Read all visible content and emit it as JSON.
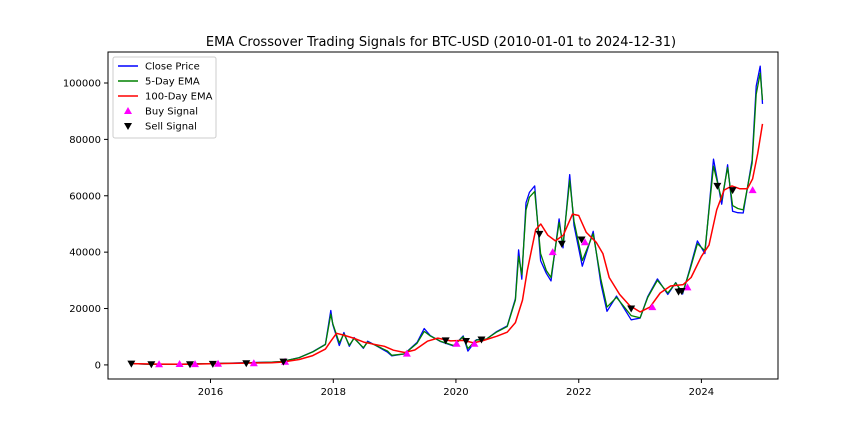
{
  "chart_data": {
    "type": "line",
    "title": "EMA Crossover Trading Signals for BTC-USD (2010-01-01 to 2024-12-31)",
    "xlabel": "",
    "ylabel": "",
    "x_range": [
      "2014-05-01",
      "2025-04-01"
    ],
    "ylim": [
      -5000,
      111000
    ],
    "x_ticks": [
      {
        "date": "2016-01-01",
        "label": "2016"
      },
      {
        "date": "2018-01-01",
        "label": "2018"
      },
      {
        "date": "2020-01-01",
        "label": "2020"
      },
      {
        "date": "2022-01-01",
        "label": "2022"
      },
      {
        "date": "2024-01-01",
        "label": "2024"
      }
    ],
    "y_ticks": [
      0,
      20000,
      40000,
      60000,
      80000,
      100000
    ],
    "grid": false,
    "legend_position": "top-left",
    "series": [
      {
        "name": "Close Price",
        "color": "#0000ff",
        "points": [
          [
            "2014-09-17",
            457
          ],
          [
            "2015-01-14",
            178
          ],
          [
            "2015-06-01",
            230
          ],
          [
            "2015-11-04",
            400
          ],
          [
            "2016-01-01",
            430
          ],
          [
            "2016-06-15",
            700
          ],
          [
            "2016-12-31",
            960
          ],
          [
            "2017-03-01",
            1200
          ],
          [
            "2017-06-12",
            2600
          ],
          [
            "2017-09-01",
            4700
          ],
          [
            "2017-11-15",
            7300
          ],
          [
            "2017-12-17",
            19300
          ],
          [
            "2017-12-29",
            14300
          ],
          [
            "2018-02-06",
            6900
          ],
          [
            "2018-03-05",
            11500
          ],
          [
            "2018-04-06",
            6600
          ],
          [
            "2018-05-05",
            9700
          ],
          [
            "2018-06-29",
            5900
          ],
          [
            "2018-07-24",
            8400
          ],
          [
            "2018-09-01",
            7200
          ],
          [
            "2018-11-20",
            4500
          ],
          [
            "2018-12-15",
            3200
          ],
          [
            "2019-03-01",
            3900
          ],
          [
            "2019-05-15",
            8000
          ],
          [
            "2019-06-26",
            12900
          ],
          [
            "2019-08-01",
            10400
          ],
          [
            "2019-10-01",
            8300
          ],
          [
            "2019-12-18",
            6700
          ],
          [
            "2020-02-13",
            10300
          ],
          [
            "2020-03-12",
            4900
          ],
          [
            "2020-05-01",
            8900
          ],
          [
            "2020-07-01",
            9200
          ],
          [
            "2020-09-01",
            11900
          ],
          [
            "2020-11-01",
            13800
          ],
          [
            "2020-12-20",
            23500
          ],
          [
            "2021-01-08",
            40800
          ],
          [
            "2021-01-27",
            30400
          ],
          [
            "2021-02-21",
            57500
          ],
          [
            "2021-03-13",
            61200
          ],
          [
            "2021-04-14",
            63500
          ],
          [
            "2021-05-19",
            37000
          ],
          [
            "2021-06-22",
            32500
          ],
          [
            "2021-07-20",
            29800
          ],
          [
            "2021-09-06",
            51800
          ],
          [
            "2021-09-29",
            41500
          ],
          [
            "2021-11-08",
            67500
          ],
          [
            "2021-12-04",
            49500
          ],
          [
            "2022-01-22",
            35000
          ],
          [
            "2022-03-28",
            47400
          ],
          [
            "2022-05-12",
            29000
          ],
          [
            "2022-06-18",
            19000
          ],
          [
            "2022-08-14",
            24400
          ],
          [
            "2022-11-09",
            16000
          ],
          [
            "2023-01-01",
            16600
          ],
          [
            "2023-02-16",
            24300
          ],
          [
            "2023-04-14",
            30500
          ],
          [
            "2023-06-15",
            25000
          ],
          [
            "2023-08-01",
            29200
          ],
          [
            "2023-09-11",
            25100
          ],
          [
            "2023-10-24",
            34000
          ],
          [
            "2023-12-08",
            44000
          ],
          [
            "2024-01-22",
            39500
          ],
          [
            "2024-03-13",
            73000
          ],
          [
            "2024-05-01",
            57000
          ],
          [
            "2024-06-05",
            71000
          ],
          [
            "2024-07-05",
            54500
          ],
          [
            "2024-08-05",
            54000
          ],
          [
            "2024-09-06",
            53900
          ],
          [
            "2024-10-29",
            72700
          ],
          [
            "2024-11-22",
            98900
          ],
          [
            "2024-12-16",
            106000
          ],
          [
            "2024-12-30",
            92600
          ]
        ]
      },
      {
        "name": "5-Day EMA",
        "color": "#008000",
        "points": [
          [
            "2014-09-17",
            457
          ],
          [
            "2015-01-14",
            200
          ],
          [
            "2015-06-01",
            232
          ],
          [
            "2015-11-04",
            390
          ],
          [
            "2016-01-01",
            430
          ],
          [
            "2016-06-15",
            690
          ],
          [
            "2016-12-31",
            950
          ],
          [
            "2017-03-01",
            1200
          ],
          [
            "2017-06-12",
            2550
          ],
          [
            "2017-09-01",
            4600
          ],
          [
            "2017-11-15",
            7200
          ],
          [
            "2017-12-17",
            18000
          ],
          [
            "2017-12-29",
            14600
          ],
          [
            "2018-02-06",
            7800
          ],
          [
            "2018-03-05",
            11000
          ],
          [
            "2018-04-06",
            7000
          ],
          [
            "2018-05-05",
            9400
          ],
          [
            "2018-06-29",
            6100
          ],
          [
            "2018-07-24",
            8100
          ],
          [
            "2018-09-01",
            7200
          ],
          [
            "2018-11-20",
            4900
          ],
          [
            "2018-12-15",
            3400
          ],
          [
            "2019-03-01",
            3900
          ],
          [
            "2019-05-15",
            7700
          ],
          [
            "2019-06-26",
            11900
          ],
          [
            "2019-08-01",
            10300
          ],
          [
            "2019-10-01",
            8400
          ],
          [
            "2019-12-18",
            6900
          ],
          [
            "2020-02-13",
            10000
          ],
          [
            "2020-03-12",
            5800
          ],
          [
            "2020-05-01",
            8800
          ],
          [
            "2020-07-01",
            9200
          ],
          [
            "2020-09-01",
            11700
          ],
          [
            "2020-11-01",
            13600
          ],
          [
            "2020-12-20",
            23000
          ],
          [
            "2021-01-08",
            38500
          ],
          [
            "2021-01-27",
            32000
          ],
          [
            "2021-02-21",
            55000
          ],
          [
            "2021-03-13",
            59500
          ],
          [
            "2021-04-14",
            61500
          ],
          [
            "2021-05-19",
            39500
          ],
          [
            "2021-06-22",
            33500
          ],
          [
            "2021-07-20",
            31000
          ],
          [
            "2021-09-06",
            50500
          ],
          [
            "2021-09-29",
            42500
          ],
          [
            "2021-11-08",
            65500
          ],
          [
            "2021-12-04",
            51000
          ],
          [
            "2022-01-22",
            37000
          ],
          [
            "2022-03-28",
            46500
          ],
          [
            "2022-05-12",
            30500
          ],
          [
            "2022-06-18",
            20500
          ],
          [
            "2022-08-14",
            24000
          ],
          [
            "2022-11-09",
            17500
          ],
          [
            "2023-01-01",
            16700
          ],
          [
            "2023-02-16",
            24000
          ],
          [
            "2023-04-14",
            30000
          ],
          [
            "2023-06-15",
            25500
          ],
          [
            "2023-08-01",
            29100
          ],
          [
            "2023-09-11",
            25500
          ],
          [
            "2023-10-24",
            33500
          ],
          [
            "2023-12-08",
            43000
          ],
          [
            "2024-01-22",
            40500
          ],
          [
            "2024-03-13",
            70500
          ],
          [
            "2024-05-01",
            58500
          ],
          [
            "2024-06-05",
            70000
          ],
          [
            "2024-07-05",
            56500
          ],
          [
            "2024-08-05",
            55500
          ],
          [
            "2024-09-06",
            55000
          ],
          [
            "2024-10-29",
            71500
          ],
          [
            "2024-11-22",
            96000
          ],
          [
            "2024-12-16",
            103500
          ],
          [
            "2024-12-30",
            94000
          ]
        ]
      },
      {
        "name": "100-Day EMA",
        "color": "#ff0000",
        "points": [
          [
            "2014-09-17",
            457
          ],
          [
            "2015-03-01",
            300
          ],
          [
            "2015-09-01",
            260
          ],
          [
            "2016-01-01",
            390
          ],
          [
            "2016-06-15",
            560
          ],
          [
            "2016-12-31",
            780
          ],
          [
            "2017-03-01",
            1000
          ],
          [
            "2017-06-12",
            1900
          ],
          [
            "2017-09-01",
            3300
          ],
          [
            "2017-11-15",
            5600
          ],
          [
            "2017-12-17",
            8400
          ],
          [
            "2018-01-20",
            11200
          ],
          [
            "2018-03-01",
            10600
          ],
          [
            "2018-05-01",
            9500
          ],
          [
            "2018-07-01",
            8100
          ],
          [
            "2018-09-01",
            7300
          ],
          [
            "2018-11-01",
            6600
          ],
          [
            "2018-12-25",
            5200
          ],
          [
            "2019-03-01",
            4400
          ],
          [
            "2019-05-01",
            5300
          ],
          [
            "2019-07-15",
            8400
          ],
          [
            "2019-09-15",
            9500
          ],
          [
            "2019-12-01",
            8500
          ],
          [
            "2020-02-15",
            8700
          ],
          [
            "2020-04-15",
            7800
          ],
          [
            "2020-06-15",
            8700
          ],
          [
            "2020-09-01",
            10200
          ],
          [
            "2020-11-01",
            11600
          ],
          [
            "2020-12-20",
            15000
          ],
          [
            "2021-01-31",
            23000
          ],
          [
            "2021-03-01",
            33500
          ],
          [
            "2021-04-20",
            48000
          ],
          [
            "2021-05-20",
            50000
          ],
          [
            "2021-07-01",
            46000
          ],
          [
            "2021-08-15",
            44000
          ],
          [
            "2021-10-01",
            46000
          ],
          [
            "2021-11-25",
            53500
          ],
          [
            "2022-01-01",
            53000
          ],
          [
            "2022-02-15",
            47000
          ],
          [
            "2022-04-15",
            43500
          ],
          [
            "2022-05-25",
            39500
          ],
          [
            "2022-07-01",
            31000
          ],
          [
            "2022-09-01",
            25000
          ],
          [
            "2022-11-01",
            21000
          ],
          [
            "2023-01-01",
            18800
          ],
          [
            "2023-03-01",
            20500
          ],
          [
            "2023-05-01",
            25500
          ],
          [
            "2023-07-01",
            28000
          ],
          [
            "2023-09-15",
            28500
          ],
          [
            "2023-11-01",
            31000
          ],
          [
            "2024-01-01",
            38500
          ],
          [
            "2024-02-15",
            42500
          ],
          [
            "2024-04-01",
            55000
          ],
          [
            "2024-05-15",
            62000
          ],
          [
            "2024-07-01",
            63500
          ],
          [
            "2024-08-15",
            62500
          ],
          [
            "2024-10-01",
            62500
          ],
          [
            "2024-11-01",
            66000
          ],
          [
            "2024-12-01",
            75000
          ],
          [
            "2024-12-30",
            85500
          ]
        ]
      }
    ],
    "signals": [
      {
        "name": "Buy Signal",
        "color": "#ff00ff",
        "marker": "triangle-up",
        "points": [
          [
            "2015-03-01",
            250
          ],
          [
            "2015-07-01",
            300
          ],
          [
            "2015-10-01",
            280
          ],
          [
            "2016-02-15",
            400
          ],
          [
            "2016-09-15",
            600
          ],
          [
            "2017-03-20",
            1100
          ],
          [
            "2019-03-15",
            4000
          ],
          [
            "2020-01-05",
            7500
          ],
          [
            "2020-04-20",
            7500
          ],
          [
            "2021-07-30",
            40000
          ],
          [
            "2022-02-07",
            43500
          ],
          [
            "2023-03-15",
            20500
          ],
          [
            "2023-10-10",
            27500
          ],
          [
            "2024-11-01",
            62000
          ]
        ]
      },
      {
        "name": "Sell Signal",
        "color": "#000000",
        "marker": "triangle-down",
        "points": [
          [
            "2014-09-17",
            457
          ],
          [
            "2015-01-14",
            230
          ],
          [
            "2015-09-01",
            240
          ],
          [
            "2016-01-15",
            380
          ],
          [
            "2016-08-01",
            580
          ],
          [
            "2017-03-10",
            1150
          ],
          [
            "2019-11-01",
            8700
          ],
          [
            "2020-03-01",
            8500
          ],
          [
            "2020-06-01",
            9000
          ],
          [
            "2021-05-12",
            46500
          ],
          [
            "2021-09-22",
            43000
          ],
          [
            "2022-01-18",
            44500
          ],
          [
            "2022-11-09",
            20000
          ],
          [
            "2023-08-18",
            26000
          ],
          [
            "2023-09-05",
            26200
          ],
          [
            "2024-04-05",
            63500
          ],
          [
            "2024-07-05",
            62000
          ]
        ]
      }
    ]
  }
}
